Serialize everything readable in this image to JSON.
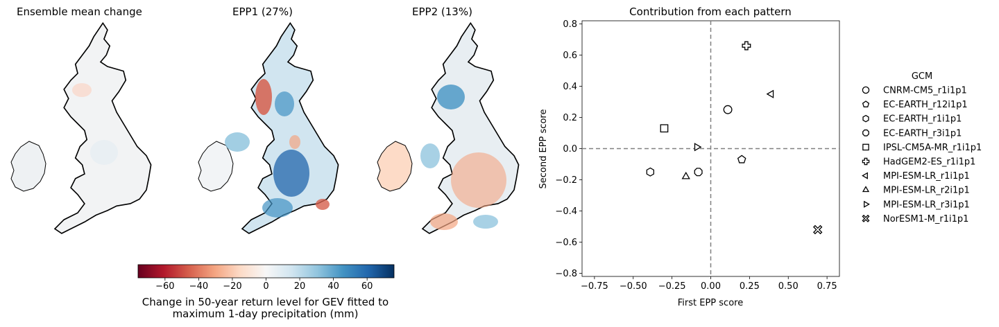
{
  "maps": {
    "titles": [
      "Ensemble mean change",
      "EPP1 (27%)",
      "EPP2 (13%)"
    ],
    "colorbar": {
      "label_line1": "Change in 50-year return level for GEV fitted to",
      "label_line2": "maximum 1-day precipitation (mm)",
      "ticks": [
        -60,
        -40,
        -20,
        0,
        20,
        40,
        60
      ],
      "tick_labels": [
        "−60",
        "−40",
        "−20",
        "0",
        "20",
        "40",
        "60"
      ],
      "range": [
        -76,
        76
      ],
      "colormap": "RdBu"
    }
  },
  "chart_data": {
    "type": "scatter",
    "title": "Contribution from each pattern",
    "xlabel": "First EPP score",
    "ylabel": "Second EPP score",
    "xlim": [
      -0.83,
      0.83
    ],
    "ylim": [
      -0.82,
      0.82
    ],
    "xticks": [
      -0.75,
      -0.5,
      -0.25,
      0.0,
      0.25,
      0.5,
      0.75
    ],
    "xtick_labels": [
      "−0.75",
      "−0.50",
      "−0.25",
      "0.00",
      "0.25",
      "0.50",
      "0.75"
    ],
    "yticks": [
      -0.8,
      -0.6,
      -0.4,
      -0.2,
      0.0,
      0.2,
      0.4,
      0.6,
      0.8
    ],
    "ytick_labels": [
      "−0.8",
      "−0.6",
      "−0.4",
      "−0.2",
      "0.0",
      "0.2",
      "0.4",
      "0.6",
      "0.8"
    ],
    "reference_lines": {
      "x": 0,
      "y": 0,
      "style": "dashed",
      "color": "#808080"
    },
    "legend": {
      "title": "GCM",
      "placement": "outside right"
    },
    "series": [
      {
        "name": "CNRM-CM5_r1i1p1",
        "marker": "circle",
        "x": 0.11,
        "y": 0.25
      },
      {
        "name": "EC-EARTH_r12i1p1",
        "marker": "pentagon",
        "x": 0.2,
        "y": -0.07
      },
      {
        "name": "EC-EARTH_r1i1p1",
        "marker": "hexagon",
        "x": -0.39,
        "y": -0.15
      },
      {
        "name": "EC-EARTH_r3i1p1",
        "marker": "octagon",
        "x": -0.08,
        "y": -0.15
      },
      {
        "name": "IPSL-CM5A-MR_r1i1p1",
        "marker": "square",
        "x": -0.3,
        "y": 0.13
      },
      {
        "name": "HadGEM2-ES_r1i1p1",
        "marker": "plus",
        "x": 0.23,
        "y": 0.66
      },
      {
        "name": "MPI-ESM-LR_r1i1p1",
        "marker": "triangle-left",
        "x": 0.39,
        "y": 0.35
      },
      {
        "name": "MPI-ESM-LR_r2i1p1",
        "marker": "triangle-up",
        "x": -0.16,
        "y": -0.18
      },
      {
        "name": "MPI-ESM-LR_r3i1p1",
        "marker": "triangle-right",
        "x": -0.09,
        "y": 0.01
      },
      {
        "name": "NorESM1-M_r1i1p1",
        "marker": "x-filled",
        "x": 0.69,
        "y": -0.52
      }
    ]
  }
}
